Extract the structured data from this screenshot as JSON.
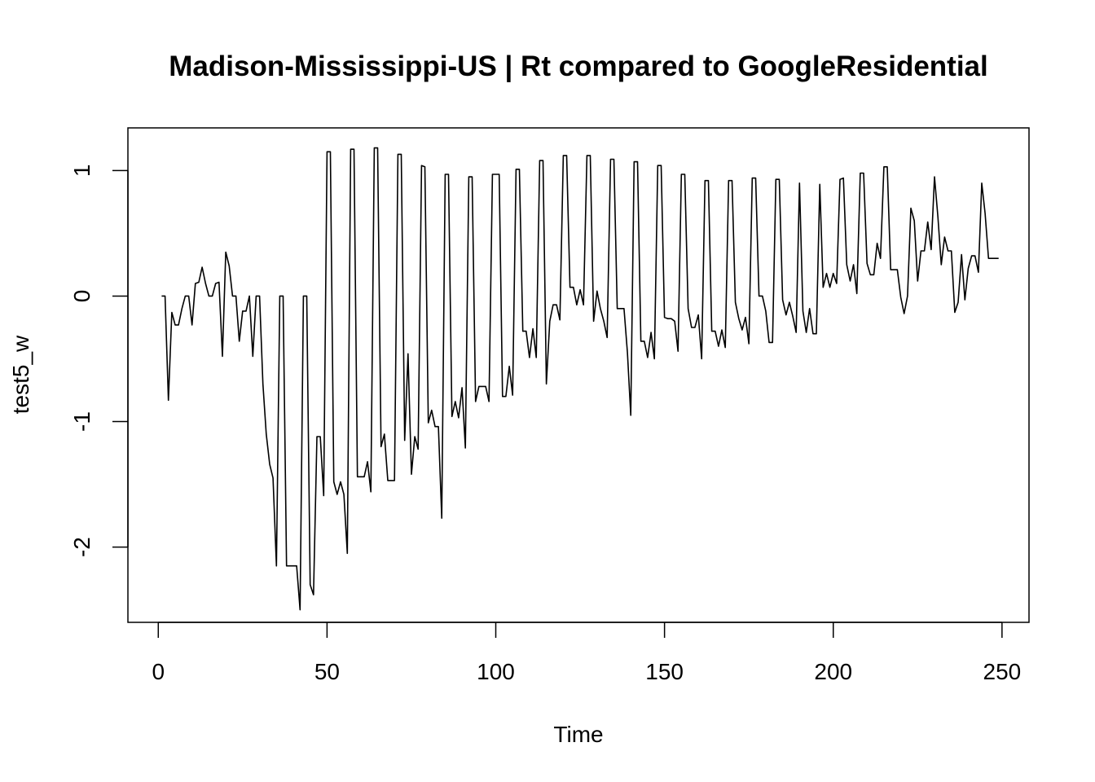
{
  "chart_data": {
    "type": "line",
    "title": "Madison-Mississippi-US | Rt compared to GoogleResidential",
    "xlabel": "Time",
    "ylabel": "test5_w",
    "xlim": [
      -9,
      258
    ],
    "ylim": [
      -2.6,
      1.34
    ],
    "xticks": [
      0,
      50,
      100,
      150,
      200,
      250
    ],
    "xtick_labels": [
      "0",
      "50",
      "100",
      "150",
      "200",
      "250"
    ],
    "yticks": [
      -2,
      -1,
      0,
      1
    ],
    "ytick_labels": [
      "-2",
      "-1",
      "0",
      "1"
    ],
    "grid": false,
    "line_color": "#000000",
    "x_start": 1,
    "series": [
      {
        "values": [
          0,
          0,
          -0.83,
          -0.13,
          -0.23,
          -0.23,
          -0.1,
          0,
          0,
          -0.23,
          0.1,
          0.11,
          0.23,
          0.1,
          0,
          0,
          0.1,
          0.11,
          -0.48,
          0.35,
          0.24,
          0,
          0,
          -0.36,
          -0.12,
          -0.12,
          0,
          -0.48,
          0,
          0,
          -0.7,
          -1.1,
          -1.34,
          -1.45,
          -2.15,
          0,
          0,
          -2.15,
          -2.15,
          -2.15,
          -2.15,
          -2.5,
          0,
          0,
          -2.3,
          -2.38,
          -1.12,
          -1.12,
          -1.59,
          1.15,
          1.15,
          -1.48,
          -1.58,
          -1.48,
          -1.58,
          -2.05,
          1.17,
          1.17,
          -1.44,
          -1.44,
          -1.44,
          -1.32,
          -1.56,
          1.18,
          1.18,
          -1.2,
          -1.1,
          -1.47,
          -1.47,
          -1.47,
          1.13,
          1.13,
          -1.15,
          -0.46,
          -1.42,
          -1.12,
          -1.22,
          1.04,
          1.03,
          -1.01,
          -0.91,
          -1.04,
          -1.04,
          -1.77,
          0.97,
          0.97,
          -0.96,
          -0.84,
          -0.97,
          -0.73,
          -1.21,
          0.95,
          0.95,
          -0.84,
          -0.72,
          -0.72,
          -0.72,
          -0.84,
          0.97,
          0.97,
          0.97,
          -0.8,
          -0.8,
          -0.56,
          -0.79,
          1.01,
          1.01,
          -0.28,
          -0.28,
          -0.49,
          -0.26,
          -0.49,
          1.08,
          1.08,
          -0.7,
          -0.2,
          -0.07,
          -0.07,
          -0.19,
          1.12,
          1.12,
          0.07,
          0.07,
          -0.07,
          0.05,
          -0.07,
          1.12,
          1.12,
          -0.2,
          0.04,
          -0.1,
          -0.2,
          -0.33,
          1.09,
          1.09,
          -0.1,
          -0.1,
          -0.1,
          -0.45,
          -0.95,
          1.07,
          1.07,
          -0.36,
          -0.36,
          -0.49,
          -0.29,
          -0.5,
          1.04,
          1.04,
          -0.17,
          -0.18,
          -0.18,
          -0.2,
          -0.44,
          0.97,
          0.97,
          -0.1,
          -0.25,
          -0.25,
          -0.15,
          -0.5,
          0.92,
          0.92,
          -0.28,
          -0.28,
          -0.4,
          -0.27,
          -0.41,
          0.92,
          0.92,
          -0.05,
          -0.18,
          -0.27,
          -0.17,
          -0.38,
          0.94,
          0.94,
          0,
          0,
          -0.12,
          -0.37,
          -0.37,
          0.93,
          0.93,
          -0.03,
          -0.15,
          -0.05,
          -0.16,
          -0.29,
          0.9,
          -0.12,
          -0.29,
          -0.1,
          -0.3,
          -0.3,
          0.89,
          0.07,
          0.18,
          0.07,
          0.18,
          0.1,
          0.93,
          0.94,
          0.25,
          0.12,
          0.25,
          0.02,
          0.98,
          0.98,
          0.26,
          0.17,
          0.17,
          0.42,
          0.3,
          1.03,
          1.03,
          0.21,
          0.21,
          0.21,
          -0.01,
          -0.14,
          0,
          0.7,
          0.6,
          0.12,
          0.36,
          0.36,
          0.59,
          0.37,
          0.95,
          0.63,
          0.25,
          0.47,
          0.36,
          0.36,
          -0.13,
          -0.05,
          0.33,
          -0.03,
          0.22,
          0.32,
          0.32,
          0.19,
          0.9,
          0.66,
          0.3,
          0.3,
          0.3,
          0.3
        ]
      }
    ]
  }
}
